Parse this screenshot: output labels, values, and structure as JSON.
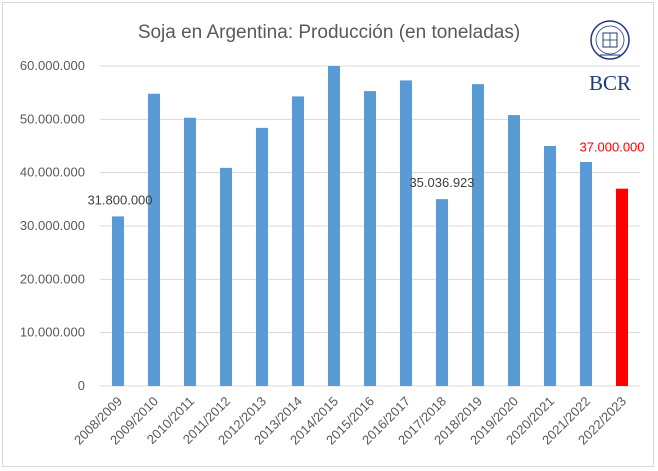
{
  "chart_data": {
    "type": "bar",
    "title": "Soja en Argentina: Producción (en toneladas)",
    "categories": [
      "2008/2009",
      "2009/2010",
      "2010/2011",
      "2011/2012",
      "2012/2013",
      "2013/2014",
      "2014/2015",
      "2015/2016",
      "2016/2017",
      "2017/2018",
      "2018/2019",
      "2019/2020",
      "2020/2021",
      "2021/2022",
      "2022/2023"
    ],
    "values": [
      31800000,
      54800000,
      50300000,
      40900000,
      48400000,
      54300000,
      60000000,
      55300000,
      57300000,
      35036923,
      56600000,
      50800000,
      45000000,
      42000000,
      37000000
    ],
    "ylim": [
      0,
      60000000
    ],
    "yticks": [
      0,
      10000000,
      20000000,
      30000000,
      40000000,
      50000000,
      60000000
    ],
    "ytick_labels": [
      "0",
      "10.000.000",
      "20.000.000",
      "30.000.000",
      "40.000.000",
      "50.000.000",
      "60.000.000"
    ],
    "grid": true,
    "colors": {
      "default": "#5b9bd5",
      "highlight": "#ff0000",
      "highlight_label": "#ff0000",
      "label": "#404040"
    },
    "highlight_index": 14,
    "data_labels": [
      {
        "index": 0,
        "text": "31.800.000"
      },
      {
        "index": 9,
        "text": "35.036.923"
      },
      {
        "index": 14,
        "text": "37.000.000"
      }
    ]
  },
  "logo": {
    "text": "BCR",
    "seal_text": "BOLSA DE COMERCIO DE ROSARIO"
  }
}
